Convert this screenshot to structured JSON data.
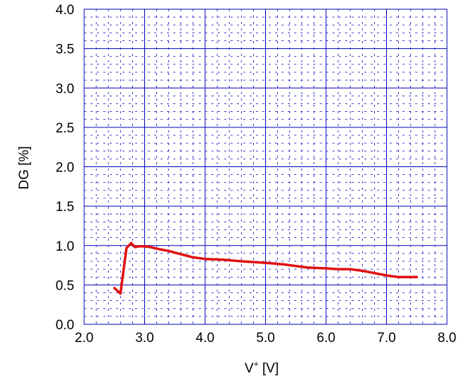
{
  "chart_data": {
    "type": "line",
    "title": "",
    "xlabel": "V",
    "xlabel_sup": "+",
    "xlabel_unit": " [V]",
    "ylabel": "DG [%]",
    "xlim": [
      2.0,
      8.0
    ],
    "ylim": [
      0.0,
      4.0
    ],
    "x_ticks": [
      "2.0",
      "3.0",
      "4.0",
      "5.0",
      "6.0",
      "7.0",
      "8.0"
    ],
    "y_ticks": [
      "0.0",
      "0.5",
      "1.0",
      "1.5",
      "2.0",
      "2.5",
      "3.0",
      "3.5",
      "4.0"
    ],
    "grid": true,
    "minor_grid": true,
    "grid_color": "#0000bb",
    "series": [
      {
        "color": "#e01010",
        "x": [
          2.5,
          2.6,
          2.7,
          2.78,
          2.84,
          2.9,
          3.0,
          3.1,
          3.2,
          3.4,
          3.6,
          3.8,
          4.0,
          4.3,
          4.6,
          5.0,
          5.3,
          5.5,
          5.7,
          6.0,
          6.2,
          6.4,
          6.6,
          6.8,
          7.0,
          7.2,
          7.5
        ],
        "y": [
          0.46,
          0.39,
          0.97,
          1.03,
          0.98,
          0.99,
          0.99,
          0.98,
          0.96,
          0.93,
          0.89,
          0.85,
          0.83,
          0.82,
          0.8,
          0.78,
          0.76,
          0.74,
          0.72,
          0.71,
          0.7,
          0.7,
          0.68,
          0.65,
          0.62,
          0.6,
          0.6
        ]
      }
    ]
  }
}
